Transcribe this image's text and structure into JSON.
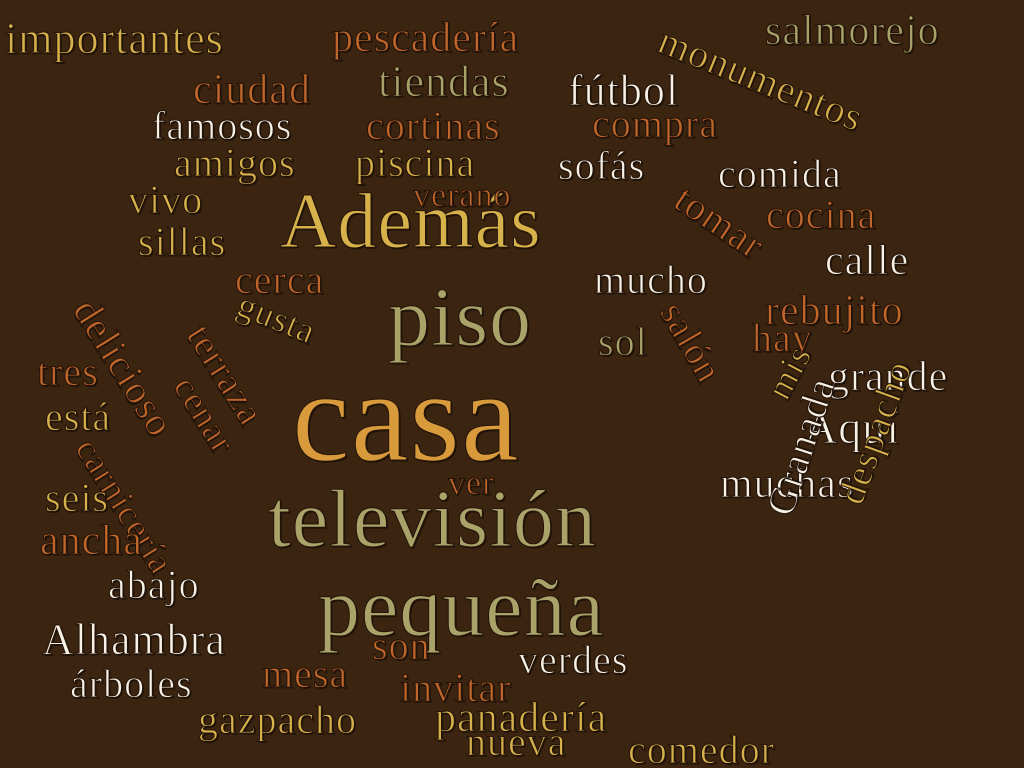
{
  "background": "#3b2410",
  "palette": {
    "amber": "#d99a3b",
    "gold": "#d7b24a",
    "olive": "#a9a36a",
    "copper": "#c0662a",
    "white": "#f7f1e6"
  },
  "words": [
    {
      "text": "casa",
      "color": "#d99a3b"
    },
    {
      "text": "Además",
      "color": "#d7b24a"
    },
    {
      "text": "piso",
      "color": "#a9a36a"
    },
    {
      "text": "televisión",
      "color": "#a9a36a"
    },
    {
      "text": "pequeña",
      "color": "#a9a36a"
    },
    {
      "text": "importantes",
      "color": "#d7b24a"
    },
    {
      "text": "pescadería",
      "color": "#c0662a"
    },
    {
      "text": "monumentos",
      "color": "#d7b24a"
    },
    {
      "text": "salmorejo",
      "color": "#a9a36a"
    },
    {
      "text": "ciudad",
      "color": "#c0662a"
    },
    {
      "text": "tiendas",
      "color": "#a9a36a"
    },
    {
      "text": "fútbol",
      "color": "#f7f1e6"
    },
    {
      "text": "famosos",
      "color": "#f7f1e6"
    },
    {
      "text": "cortinas",
      "color": "#c0662a"
    },
    {
      "text": "compra",
      "color": "#c0662a"
    },
    {
      "text": "amigos",
      "color": "#d7b24a"
    },
    {
      "text": "piscina",
      "color": "#d7b24a"
    },
    {
      "text": "sofás",
      "color": "#f7f1e6"
    },
    {
      "text": "comida",
      "color": "#f7f1e6"
    },
    {
      "text": "vivo",
      "color": "#d7b24a"
    },
    {
      "text": "verano",
      "color": "#c0662a"
    },
    {
      "text": "tomar",
      "color": "#c0662a"
    },
    {
      "text": "cocina",
      "color": "#c0662a"
    },
    {
      "text": "sillas",
      "color": "#d7b24a"
    },
    {
      "text": "calle",
      "color": "#f7f1e6"
    },
    {
      "text": "cerca",
      "color": "#c0662a"
    },
    {
      "text": "mucho",
      "color": "#f7f1e6"
    },
    {
      "text": "rebujito",
      "color": "#c0662a"
    },
    {
      "text": "delicioso",
      "color": "#c0662a"
    },
    {
      "text": "gusta",
      "color": "#d7b24a"
    },
    {
      "text": "terraza",
      "color": "#c0662a"
    },
    {
      "text": "sol",
      "color": "#a9a36a"
    },
    {
      "text": "salón",
      "color": "#c0662a"
    },
    {
      "text": "hay",
      "color": "#c0662a"
    },
    {
      "text": "tres",
      "color": "#c0662a"
    },
    {
      "text": "cenar",
      "color": "#c0662a"
    },
    {
      "text": "mis",
      "color": "#d7b24a"
    },
    {
      "text": "grande",
      "color": "#f7f1e6"
    },
    {
      "text": "está",
      "color": "#d7b24a"
    },
    {
      "text": "Aquí",
      "color": "#f7f1e6"
    },
    {
      "text": "carnicería",
      "color": "#c0662a"
    },
    {
      "text": "ver",
      "color": "#c0662a"
    },
    {
      "text": "muchas",
      "color": "#f7f1e6"
    },
    {
      "text": "seis",
      "color": "#d7b24a"
    },
    {
      "text": "ancha",
      "color": "#c0662a"
    },
    {
      "text": "despacho",
      "color": "#d7b24a"
    },
    {
      "text": "Granada",
      "color": "#f7f1e6"
    },
    {
      "text": "abajo",
      "color": "#f7f1e6"
    },
    {
      "text": "Alhambra",
      "color": "#f7f1e6"
    },
    {
      "text": "son",
      "color": "#c0662a"
    },
    {
      "text": "verdes",
      "color": "#f7f1e6"
    },
    {
      "text": "árboles",
      "color": "#f7f1e6"
    },
    {
      "text": "mesa",
      "color": "#c0662a"
    },
    {
      "text": "invitar",
      "color": "#c0662a"
    },
    {
      "text": "gazpacho",
      "color": "#d7b24a"
    },
    {
      "text": "panadería",
      "color": "#d7b24a"
    },
    {
      "text": "nueva",
      "color": "#d7b24a"
    },
    {
      "text": "comedor",
      "color": "#d7b24a"
    }
  ]
}
